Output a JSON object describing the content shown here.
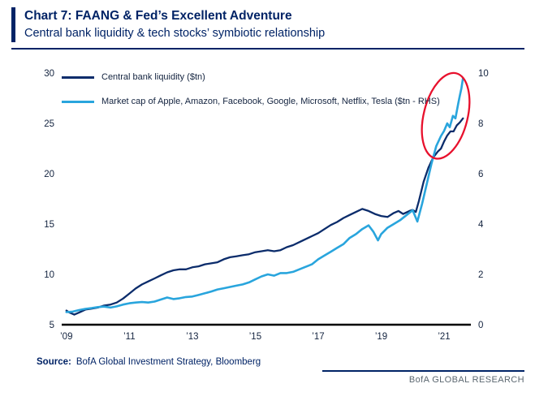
{
  "header": {
    "title": "Chart 7: FAANG & Fed’s Excellent Adventure",
    "subtitle": "Central bank liquidity & tech stocks’ symbiotic relationship"
  },
  "source": {
    "label": "Source:",
    "text": "BofA Global Investment Strategy, Bloomberg"
  },
  "brand": "BofA GLOBAL RESEARCH",
  "chart_data": {
    "type": "line",
    "title": "Chart 7: FAANG & Fed’s Excellent Adventure",
    "subtitle": "Central bank liquidity & tech stocks’ symbiotic relationship",
    "grid": false,
    "legend_position": "top-left",
    "x_range": [
      2008.85,
      2021.85
    ],
    "x_ticks": [
      {
        "year": 2009,
        "label": "’09"
      },
      {
        "year": 2011,
        "label": "’11"
      },
      {
        "year": 2013,
        "label": "’13"
      },
      {
        "year": 2015,
        "label": "’15"
      },
      {
        "year": 2017,
        "label": "’17"
      },
      {
        "year": 2019,
        "label": "’19"
      },
      {
        "year": 2021,
        "label": "’21"
      }
    ],
    "y_left": {
      "range": [
        5,
        30
      ],
      "ticks": [
        5,
        10,
        15,
        20,
        25,
        30
      ]
    },
    "y_right": {
      "range": [
        0,
        10
      ],
      "ticks": [
        0,
        2,
        4,
        6,
        8,
        10
      ]
    },
    "colors": {
      "axis": "#000000",
      "navy": "#0b2c6b",
      "light_blue": "#29a5dd",
      "highlight": "#e8112d"
    },
    "series": [
      {
        "name": "Central bank liquidity ($tn)",
        "slug": "central-bank-liquidity-line",
        "axis": "left",
        "color": "#0b2c6b",
        "width": 2.3,
        "points": [
          [
            2009.0,
            6.4
          ],
          [
            2009.1,
            6.2
          ],
          [
            2009.25,
            6.0
          ],
          [
            2009.4,
            6.2
          ],
          [
            2009.6,
            6.5
          ],
          [
            2009.8,
            6.6
          ],
          [
            2010.0,
            6.7
          ],
          [
            2010.2,
            6.9
          ],
          [
            2010.4,
            7.0
          ],
          [
            2010.6,
            7.2
          ],
          [
            2010.8,
            7.6
          ],
          [
            2011.0,
            8.1
          ],
          [
            2011.2,
            8.6
          ],
          [
            2011.4,
            9.0
          ],
          [
            2011.6,
            9.3
          ],
          [
            2011.8,
            9.6
          ],
          [
            2012.0,
            9.9
          ],
          [
            2012.2,
            10.2
          ],
          [
            2012.4,
            10.4
          ],
          [
            2012.6,
            10.5
          ],
          [
            2012.8,
            10.5
          ],
          [
            2013.0,
            10.7
          ],
          [
            2013.2,
            10.8
          ],
          [
            2013.4,
            11.0
          ],
          [
            2013.6,
            11.1
          ],
          [
            2013.8,
            11.2
          ],
          [
            2014.0,
            11.5
          ],
          [
            2014.2,
            11.7
          ],
          [
            2014.4,
            11.8
          ],
          [
            2014.6,
            11.9
          ],
          [
            2014.8,
            12.0
          ],
          [
            2015.0,
            12.2
          ],
          [
            2015.2,
            12.3
          ],
          [
            2015.4,
            12.4
          ],
          [
            2015.6,
            12.3
          ],
          [
            2015.8,
            12.4
          ],
          [
            2016.0,
            12.7
          ],
          [
            2016.2,
            12.9
          ],
          [
            2016.4,
            13.2
          ],
          [
            2016.6,
            13.5
          ],
          [
            2016.8,
            13.8
          ],
          [
            2017.0,
            14.1
          ],
          [
            2017.2,
            14.5
          ],
          [
            2017.4,
            14.9
          ],
          [
            2017.6,
            15.2
          ],
          [
            2017.8,
            15.6
          ],
          [
            2018.0,
            15.9
          ],
          [
            2018.2,
            16.2
          ],
          [
            2018.4,
            16.5
          ],
          [
            2018.6,
            16.3
          ],
          [
            2018.8,
            16.0
          ],
          [
            2019.0,
            15.8
          ],
          [
            2019.2,
            15.7
          ],
          [
            2019.4,
            16.1
          ],
          [
            2019.55,
            16.3
          ],
          [
            2019.7,
            16.0
          ],
          [
            2019.9,
            16.3
          ],
          [
            2020.0,
            16.4
          ],
          [
            2020.1,
            16.2
          ],
          [
            2020.2,
            17.3
          ],
          [
            2020.35,
            19.2
          ],
          [
            2020.5,
            20.6
          ],
          [
            2020.65,
            21.6
          ],
          [
            2020.8,
            22.2
          ],
          [
            2020.9,
            22.5
          ],
          [
            2021.0,
            23.2
          ],
          [
            2021.1,
            23.8
          ],
          [
            2021.2,
            24.2
          ],
          [
            2021.3,
            24.2
          ],
          [
            2021.4,
            24.8
          ],
          [
            2021.5,
            25.1
          ],
          [
            2021.6,
            25.5
          ]
        ]
      },
      {
        "name": "Market cap of Apple, Amazon, Facebook, Google, Microsoft, Netflix, Tesla ($tn - RHS)",
        "slug": "faang-market-cap-line",
        "axis": "right",
        "color": "#29a5dd",
        "width": 2.6,
        "points": [
          [
            2009.0,
            0.5
          ],
          [
            2009.2,
            0.52
          ],
          [
            2009.4,
            0.58
          ],
          [
            2009.6,
            0.63
          ],
          [
            2009.8,
            0.66
          ],
          [
            2010.0,
            0.7
          ],
          [
            2010.2,
            0.72
          ],
          [
            2010.4,
            0.68
          ],
          [
            2010.6,
            0.73
          ],
          [
            2010.8,
            0.8
          ],
          [
            2011.0,
            0.85
          ],
          [
            2011.2,
            0.88
          ],
          [
            2011.4,
            0.9
          ],
          [
            2011.6,
            0.88
          ],
          [
            2011.8,
            0.92
          ],
          [
            2012.0,
            1.0
          ],
          [
            2012.2,
            1.08
          ],
          [
            2012.4,
            1.02
          ],
          [
            2012.6,
            1.05
          ],
          [
            2012.8,
            1.1
          ],
          [
            2013.0,
            1.12
          ],
          [
            2013.2,
            1.18
          ],
          [
            2013.4,
            1.25
          ],
          [
            2013.6,
            1.32
          ],
          [
            2013.8,
            1.4
          ],
          [
            2014.0,
            1.45
          ],
          [
            2014.2,
            1.5
          ],
          [
            2014.4,
            1.55
          ],
          [
            2014.6,
            1.6
          ],
          [
            2014.8,
            1.68
          ],
          [
            2015.0,
            1.8
          ],
          [
            2015.2,
            1.92
          ],
          [
            2015.4,
            2.0
          ],
          [
            2015.6,
            1.95
          ],
          [
            2015.8,
            2.05
          ],
          [
            2016.0,
            2.05
          ],
          [
            2016.2,
            2.1
          ],
          [
            2016.4,
            2.2
          ],
          [
            2016.6,
            2.3
          ],
          [
            2016.8,
            2.4
          ],
          [
            2017.0,
            2.6
          ],
          [
            2017.2,
            2.75
          ],
          [
            2017.4,
            2.9
          ],
          [
            2017.6,
            3.05
          ],
          [
            2017.8,
            3.2
          ],
          [
            2018.0,
            3.45
          ],
          [
            2018.2,
            3.6
          ],
          [
            2018.4,
            3.8
          ],
          [
            2018.6,
            3.95
          ],
          [
            2018.75,
            3.7
          ],
          [
            2018.9,
            3.35
          ],
          [
            2019.0,
            3.6
          ],
          [
            2019.2,
            3.85
          ],
          [
            2019.4,
            4.0
          ],
          [
            2019.6,
            4.15
          ],
          [
            2019.8,
            4.35
          ],
          [
            2020.0,
            4.55
          ],
          [
            2020.15,
            4.1
          ],
          [
            2020.3,
            4.8
          ],
          [
            2020.45,
            5.6
          ],
          [
            2020.6,
            6.4
          ],
          [
            2020.75,
            7.1
          ],
          [
            2020.9,
            7.5
          ],
          [
            2021.0,
            7.7
          ],
          [
            2021.1,
            8.0
          ],
          [
            2021.18,
            7.85
          ],
          [
            2021.28,
            8.3
          ],
          [
            2021.36,
            8.2
          ],
          [
            2021.45,
            8.8
          ],
          [
            2021.5,
            9.1
          ],
          [
            2021.55,
            9.4
          ],
          [
            2021.6,
            9.8
          ]
        ]
      }
    ],
    "annotation": {
      "type": "ellipse",
      "note": "highlight around 2020-21 spike in both series",
      "center_year": 2021.05,
      "center_value_rhs": 8.3,
      "rx": 27,
      "ry": 54,
      "rotate": 14,
      "color": "#e8112d"
    }
  }
}
